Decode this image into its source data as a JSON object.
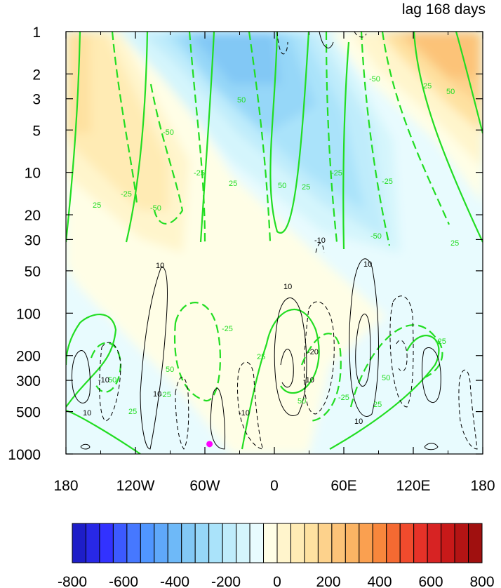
{
  "chart_data": {
    "type": "heatmap",
    "title": "lag 168 days",
    "x": {
      "label": "",
      "range": [
        -180,
        180
      ],
      "ticks": [
        -180,
        -120,
        -60,
        0,
        60,
        120,
        180
      ],
      "tick_labels": [
        "180",
        "120W",
        "60W",
        "0",
        "60E",
        "120E",
        "180"
      ]
    },
    "y": {
      "label": "",
      "scale": "log",
      "reversed": true,
      "range": [
        1,
        1000
      ],
      "ticks": [
        1,
        2,
        3,
        5,
        10,
        20,
        30,
        50,
        100,
        200,
        300,
        500,
        1000
      ],
      "tick_labels": [
        "1",
        "2",
        "3",
        "5",
        "10",
        "20",
        "30",
        "50",
        "100",
        "200",
        "300",
        "500",
        "1000"
      ]
    },
    "colorbar": {
      "levels": [
        -800,
        -750,
        -700,
        -650,
        -600,
        -550,
        -500,
        -450,
        -400,
        -350,
        -300,
        -250,
        -200,
        -150,
        -100,
        -50,
        0,
        50,
        100,
        150,
        200,
        250,
        300,
        350,
        400,
        450,
        500,
        550,
        600,
        650,
        700,
        750,
        800
      ],
      "tick_values": [
        -800,
        -600,
        -400,
        -200,
        0,
        200,
        400,
        600,
        800
      ],
      "tick_labels": [
        "-800",
        "-600",
        "-400",
        "-200",
        "0",
        "200",
        "400",
        "600",
        "800"
      ],
      "colors": [
        "#1e1ec8",
        "#2828e6",
        "#3232ff",
        "#3c5aff",
        "#4678ff",
        "#5096ff",
        "#5fa8fa",
        "#6eb9f8",
        "#82c8f5",
        "#96d7f8",
        "#aae3fa",
        "#bfecfb",
        "#d4f5fc",
        "#e8fbfe",
        "#fffee6",
        "#fff5cc",
        "#ffebb4",
        "#fee1a0",
        "#fdd28c",
        "#fcc378",
        "#fbb464",
        "#faa050",
        "#f8873c",
        "#f56a32",
        "#f04b2d",
        "#e63228",
        "#d72323",
        "#c81919",
        "#b41414",
        "#a0100f"
      ]
    },
    "green_contour_labels": [
      "25",
      "50",
      "-25",
      "-50"
    ],
    "black_contour_labels": [
      "10",
      "-10",
      "-20"
    ],
    "marker": {
      "lon": -56,
      "pressure": 850,
      "color": "#ff00ff"
    }
  }
}
